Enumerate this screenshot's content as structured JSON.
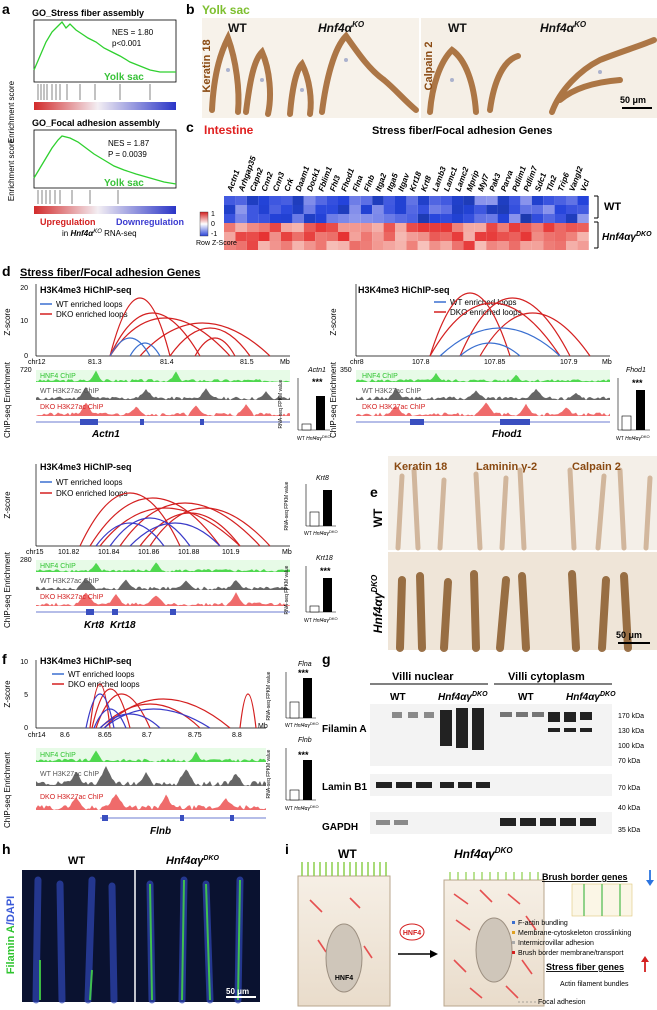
{
  "panel_labels": [
    "a",
    "b",
    "c",
    "d",
    "e",
    "f",
    "g",
    "h",
    "i"
  ],
  "a": {
    "plot1_title": "GO_Stress fiber assembly",
    "plot1_nes": "NES = 1.80",
    "plot1_p": "p<0.001",
    "plot2_title": "GO_Focal adhesion assembly",
    "plot2_nes": "NES = 1.87",
    "plot2_p": "P = 0.0039",
    "ylabel": "Enrichment score",
    "tissue": "Yolk sac",
    "up": "Upregulation",
    "down": "Downregulation",
    "in_label_pre": "in ",
    "in_label_gene": "Hnf4α",
    "in_label_sup": "KO",
    "in_label_post": " RNA-seq"
  },
  "b": {
    "tissue": "Yolk sac",
    "wt": "WT",
    "ko": "Hnf4α",
    "ko_sup": "KO",
    "stain1": "Keratin 18",
    "stain2": "Calpain 2",
    "scale": "50 μm"
  },
  "c": {
    "tissue": "Intestine",
    "title": "Stress fiber/Focal adhesion Genes",
    "genes": [
      "Actn1",
      "Arhgap35",
      "Capn2",
      "Cnn2",
      "Cnn3",
      "Crk",
      "Daam1",
      "Dock1",
      "Fblim1",
      "Fhl3",
      "Fhod1",
      "Flna",
      "Flnb",
      "Itga2",
      "Itga5",
      "Itgav",
      "Krt18",
      "Krt8",
      "Lamb3",
      "Lamc1",
      "Lamc2",
      "Mprip",
      "Myl7",
      "Pak3",
      "Parva",
      "Pdlim1",
      "Pdlim7",
      "Sdc1",
      "Tln2",
      "Trip6",
      "Vangl2",
      "Vcl"
    ],
    "wt": "WT",
    "dko": "Hnf4αγ",
    "dko_sup": "DKO",
    "legend_title": "Row Z-Score",
    "legend_ticks": [
      "1",
      "0",
      "-1"
    ]
  },
  "d": {
    "section_title": "Stress fiber/Focal adhesion Genes",
    "hichip": "H3K4me3 HiChIP-seq",
    "wt_loops": "WT enriched loops",
    "dko_loops": "DKO enriched loops",
    "zscore": "Z-score",
    "chip_ylabel": "ChIP-seq Enrichment",
    "hnf4": "HNF4 ChIP",
    "wt_h3": "WT H3K27ac ChIP",
    "dko_h3": "DKO H3K27ac ChIP",
    "mb": "Mb",
    "rna_ylabel": "RNA-seq FPKM value",
    "wt": "WT",
    "dko_bar": "Hnf4αγ",
    "dko_bar_sup": "DKO",
    "sig": "***",
    "locus1": {
      "chr": "chr12",
      "ticks": [
        "81.3",
        "81.4",
        "81.5"
      ],
      "yticks": [
        "20",
        "10",
        "0"
      ],
      "ymax": "720",
      "gene": "Actn1",
      "bar_title": "Actn1",
      "bar_ticks": [
        "100",
        "50",
        "0"
      ]
    },
    "locus2": {
      "chr": "chr8",
      "ticks": [
        "107.8",
        "107.85",
        "107.9"
      ],
      "yticks": [
        "120",
        "100",
        "80",
        "60",
        "40",
        "20",
        "0"
      ],
      "ymax": "350",
      "gene": "Fhod1",
      "bar_title": "Fhod1",
      "bar_ticks": [
        "20",
        "15",
        "10",
        "5",
        "0"
      ]
    },
    "locus3": {
      "chr": "chr15",
      "ticks": [
        "101.82",
        "101.84",
        "101.86",
        "101.88",
        "101.9"
      ],
      "yticks": [
        "40",
        "30",
        "20",
        "10",
        "0"
      ],
      "ymax": "280",
      "gene1": "Krt8",
      "gene2": "Krt18",
      "bar1_title": "Krt8",
      "bar2_title": "Krt18",
      "bar_ticks": [
        "1500",
        "1000",
        "500",
        "0"
      ]
    }
  },
  "e": {
    "stain1": "Keratin 18",
    "stain2": "Laminin γ-2",
    "stain3": "Calpain 2",
    "wt": "WT",
    "dko": "Hnf4αγ",
    "dko_sup": "DKO",
    "scale": "50 μm"
  },
  "f": {
    "chr": "chr14",
    "ticks": [
      "8.6",
      "8.65",
      "8.7",
      "8.75",
      "8.8"
    ],
    "yticks": [
      "10",
      "5",
      "0"
    ],
    "gene": "Flnb",
    "bar1_title": "Flna",
    "bar2_title": "Flnb",
    "bar1_ticks": [
      "4",
      "3",
      "2",
      "1",
      "0"
    ],
    "bar2_ticks": [
      "300",
      "200",
      "100",
      "0"
    ]
  },
  "g": {
    "col1": "Villi nuclear",
    "col2": "Villi cytoplasm",
    "wt": "WT",
    "dko": "Hnf4αγ",
    "dko_sup": "DKO",
    "bands": [
      "Filamin A",
      "Lamin B1",
      "GAPDH"
    ],
    "kda": [
      "170 kDa",
      "130 kDa",
      "100 kDa",
      "70 kDa",
      "70 kDa",
      "40 kDa",
      "35 kDa"
    ]
  },
  "h": {
    "wt": "WT",
    "dko": "Hnf4αγ",
    "dko_sup": "DKO",
    "ylabel1": "Filamin A",
    "ylabel2": "/DAPI",
    "scale": "50 μm"
  },
  "i": {
    "wt": "WT",
    "dko": "Hnf4αγ",
    "dko_sup": "DKO",
    "hnf4": "HNF4",
    "brush": "Brush border genes",
    "items": [
      "F-actin bundling",
      "Membrane-cytoskeleton crosslinking",
      "Intermicrovillar adhesion",
      "Brush border membrane/transport"
    ],
    "stress": "Stress fiber genes",
    "actin": "Actin filament bundles",
    "focal": "Focal adhesion"
  }
}
